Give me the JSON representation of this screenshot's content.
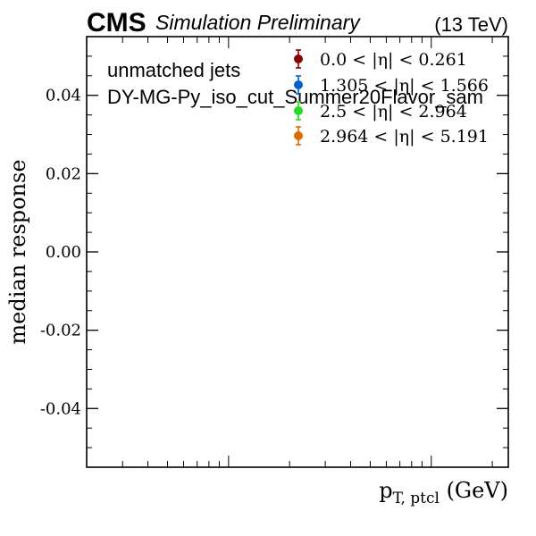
{
  "header": {
    "experiment": "CMS",
    "status": "Simulation Preliminary",
    "energy": "(13 TeV)"
  },
  "annotations": {
    "line1": "unmatched jets",
    "line2": "DY-MG-Py_iso_cut_Summer20Flavor_sam"
  },
  "chart_data": {
    "type": "scatter",
    "ylabel": "median response",
    "xlabel_main": "p",
    "xlabel_sub": "T, ptcl",
    "xlabel_unit": " (GeV)",
    "ylim": [
      -0.055,
      0.055
    ],
    "yticks": [
      -0.04,
      -0.02,
      0.0,
      0.02,
      0.04
    ],
    "ytick_labels": [
      "-0.04",
      "-0.02",
      "0.00",
      "0.02",
      "0.04"
    ],
    "xscale": "log",
    "grid": false,
    "legend_position": "top-right",
    "series": [
      {
        "name": "0.0 < |η| < 0.261",
        "color": "#8b0000",
        "points": []
      },
      {
        "name": "1.305 < |η| < 1.566",
        "color": "#0060d0",
        "points": []
      },
      {
        "name": "2.5 < |η| < 2.964",
        "color": "#22dd22",
        "points": []
      },
      {
        "name": "2.964 < |η| < 5.191",
        "color": "#dd6a00",
        "points": []
      }
    ]
  }
}
